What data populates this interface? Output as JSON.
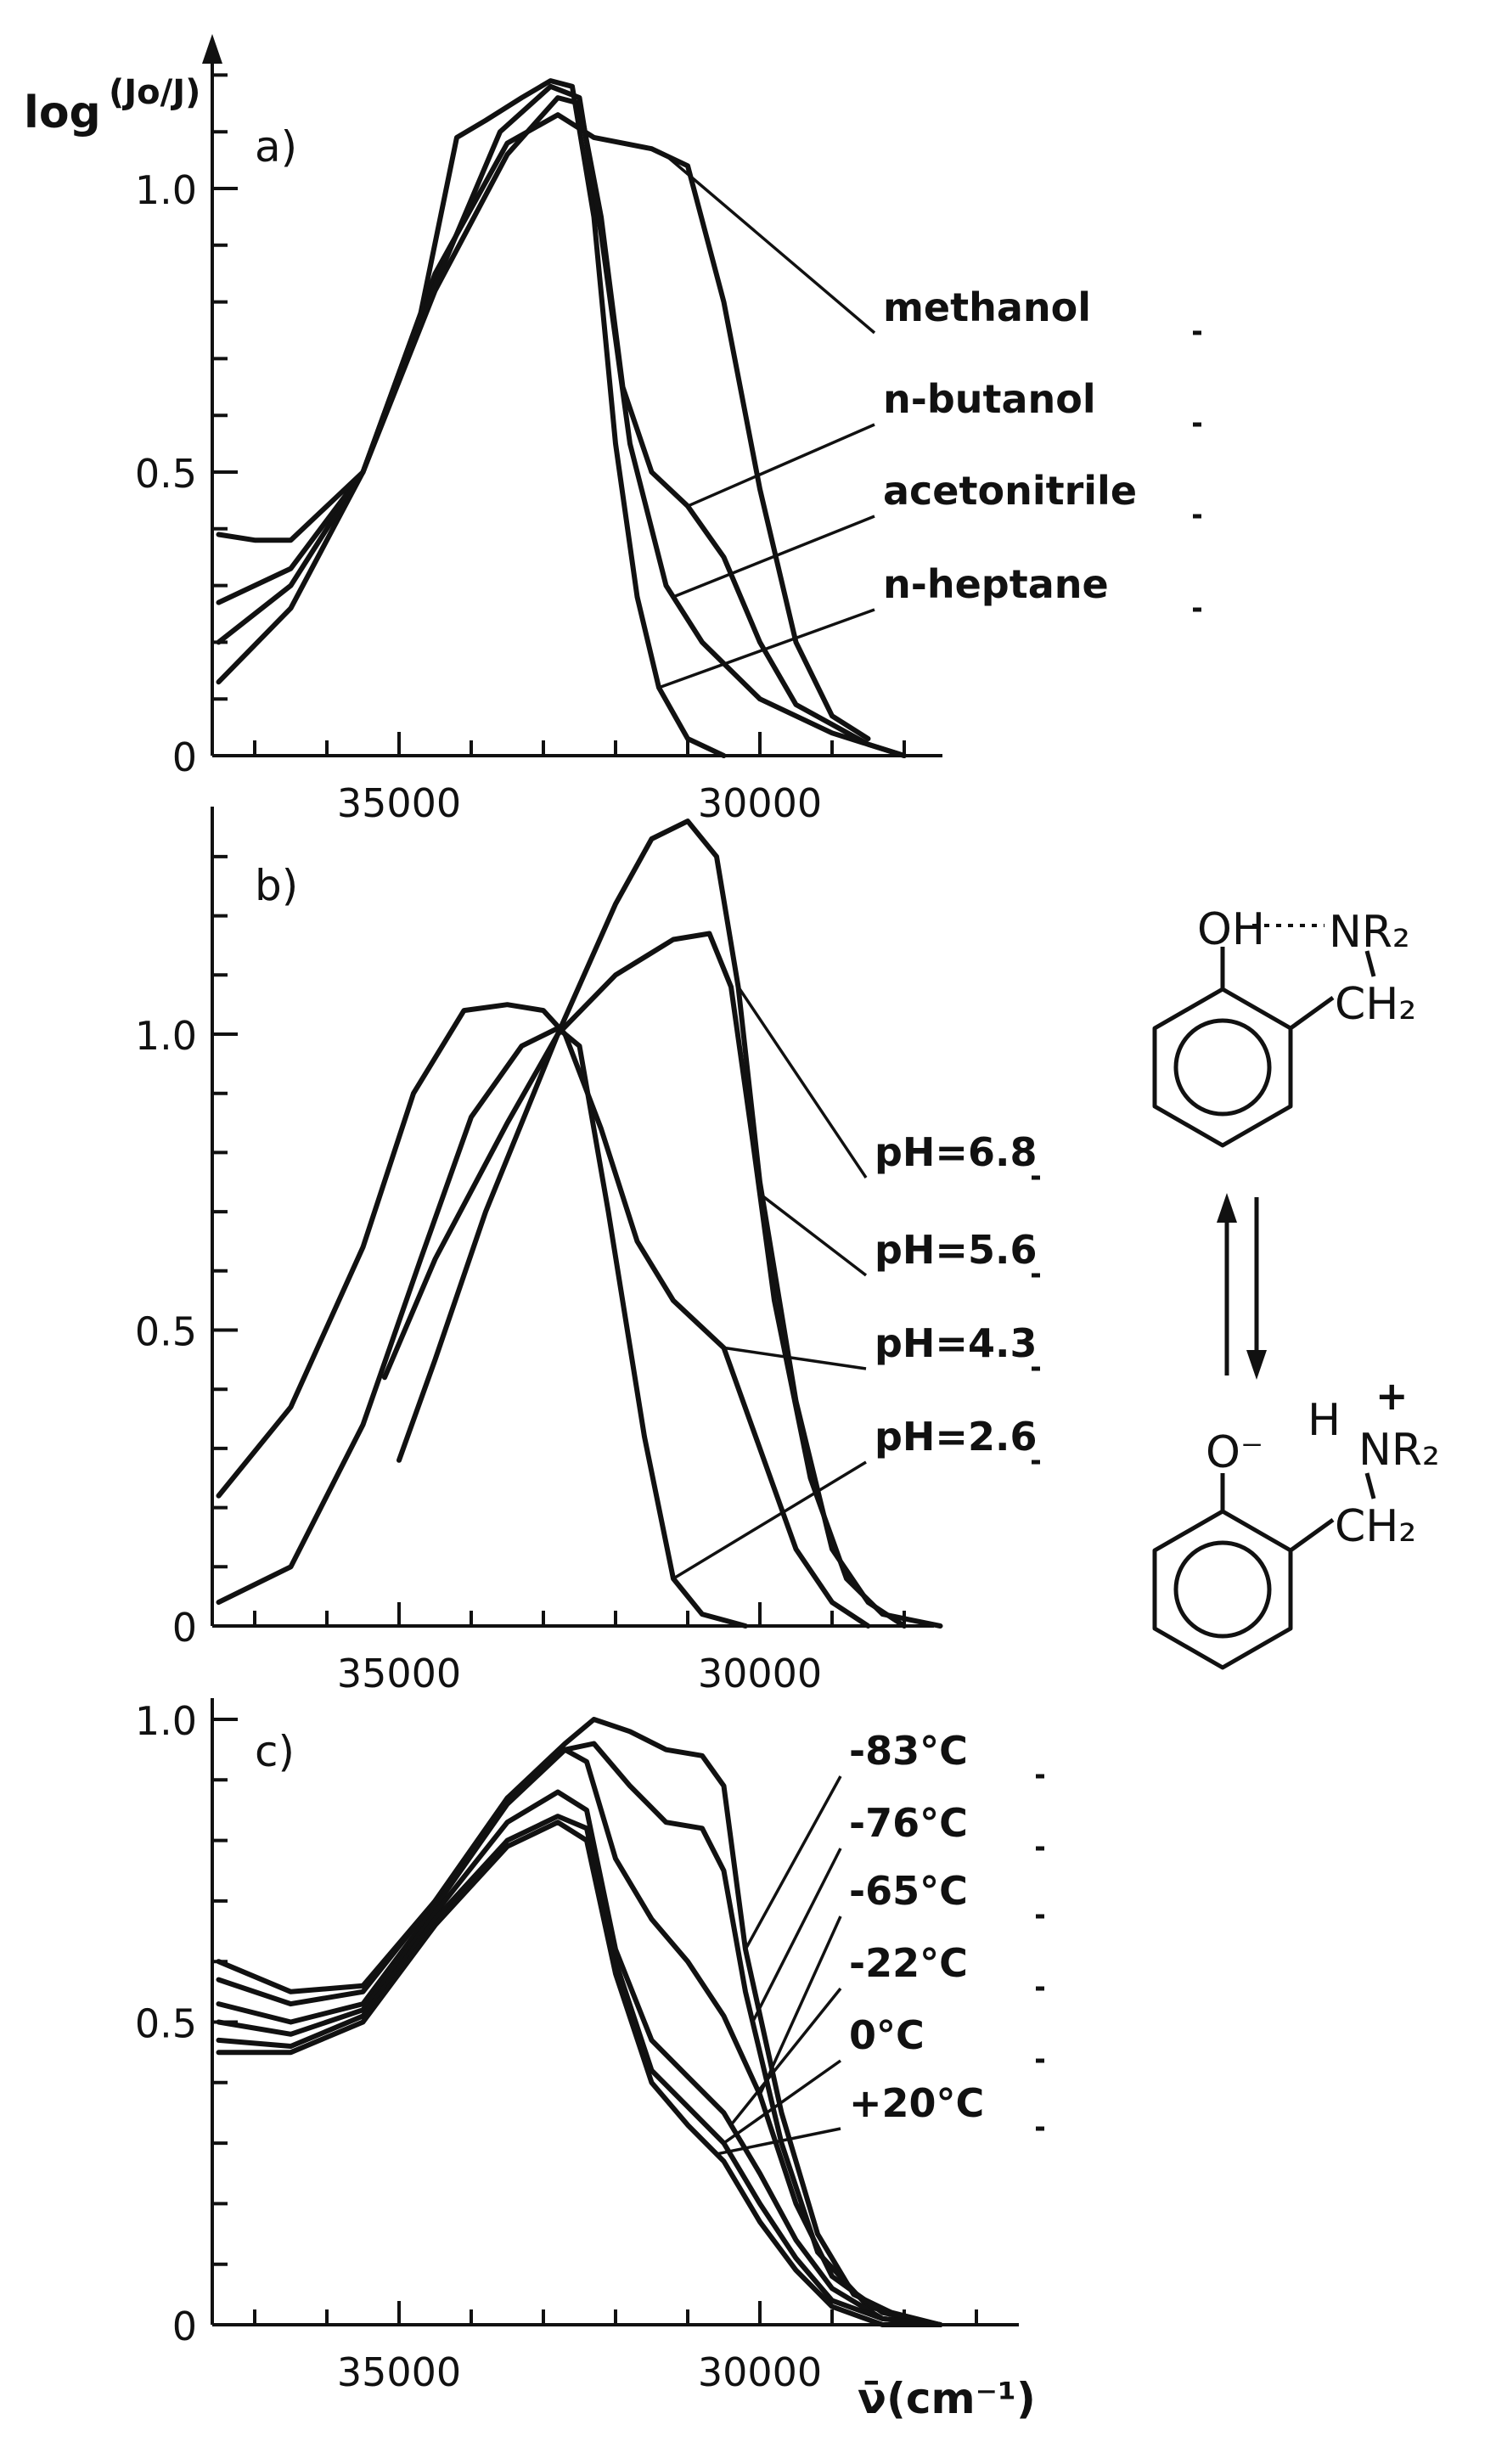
{
  "figure": {
    "ylabel_main": "log",
    "ylabel_frac": "(Jo/J)",
    "xlabel": "ν̄(cm⁻¹)"
  },
  "chart_data": [
    {
      "type": "line",
      "panel_label": "a)",
      "xlabel": "",
      "ylabel": "log(Jo/J)",
      "xlim": [
        37500,
        26500
      ],
      "ylim": [
        0,
        1.3
      ],
      "x_ticks": [
        35000,
        30000
      ],
      "y_ticks": [
        "0",
        "0.5",
        "1.0"
      ],
      "y_tick_values": [
        0,
        0.5,
        1.0
      ],
      "series": [
        {
          "name": "methanol",
          "points": [
            [
              37500,
              0.13
            ],
            [
              36500,
              0.26
            ],
            [
              35500,
              0.5
            ],
            [
              34500,
              0.85
            ],
            [
              33500,
              1.08
            ],
            [
              32800,
              1.13
            ],
            [
              32300,
              1.09
            ],
            [
              31500,
              1.07
            ],
            [
              31000,
              1.04
            ],
            [
              30500,
              0.8
            ],
            [
              30000,
              0.47
            ],
            [
              29500,
              0.2
            ],
            [
              29000,
              0.07
            ],
            [
              28500,
              0.03
            ]
          ]
        },
        {
          "name": "n-butanol",
          "points": [
            [
              37500,
              0.2
            ],
            [
              36500,
              0.3
            ],
            [
              35500,
              0.5
            ],
            [
              34500,
              0.82
            ],
            [
              33500,
              1.06
            ],
            [
              32800,
              1.16
            ],
            [
              32500,
              1.15
            ],
            [
              32200,
              0.95
            ],
            [
              31900,
              0.65
            ],
            [
              31500,
              0.5
            ],
            [
              31000,
              0.44
            ],
            [
              30500,
              0.35
            ],
            [
              30000,
              0.2
            ],
            [
              29500,
              0.09
            ],
            [
              28500,
              0.02
            ],
            [
              28000,
              0.0
            ]
          ]
        },
        {
          "name": "acetonitrile",
          "points": [
            [
              37500,
              0.27
            ],
            [
              36500,
              0.33
            ],
            [
              35500,
              0.5
            ],
            [
              34500,
              0.83
            ],
            [
              33600,
              1.1
            ],
            [
              32900,
              1.18
            ],
            [
              32500,
              1.16
            ],
            [
              32200,
              0.92
            ],
            [
              31800,
              0.55
            ],
            [
              31300,
              0.3
            ],
            [
              30800,
              0.2
            ],
            [
              30000,
              0.1
            ],
            [
              29000,
              0.04
            ],
            [
              28000,
              0.0
            ]
          ]
        },
        {
          "name": "n-heptane",
          "points": [
            [
              37500,
              0.39
            ],
            [
              37000,
              0.38
            ],
            [
              36500,
              0.38
            ],
            [
              35500,
              0.5
            ],
            [
              34700,
              0.78
            ],
            [
              34200,
              1.09
            ],
            [
              33800,
              1.12
            ],
            [
              33300,
              1.16
            ],
            [
              32900,
              1.19
            ],
            [
              32600,
              1.18
            ],
            [
              32300,
              0.95
            ],
            [
              32000,
              0.55
            ],
            [
              31700,
              0.28
            ],
            [
              31400,
              0.12
            ],
            [
              31000,
              0.03
            ],
            [
              30500,
              0.0
            ]
          ]
        }
      ]
    },
    {
      "type": "line",
      "panel_label": "b)",
      "xlabel": "",
      "ylabel": "log(Jo/J)",
      "xlim": [
        37500,
        26500
      ],
      "ylim": [
        0,
        1.4
      ],
      "x_ticks": [
        35000,
        30000
      ],
      "y_ticks": [
        "0",
        "0.5",
        "1.0"
      ],
      "y_tick_values": [
        0,
        0.5,
        1.0
      ],
      "series": [
        {
          "name": "pH=6.8",
          "points": [
            [
              35000,
              0.28
            ],
            [
              34500,
              0.45
            ],
            [
              33800,
              0.7
            ],
            [
              32800,
              1.0
            ],
            [
              32000,
              1.22
            ],
            [
              31500,
              1.33
            ],
            [
              31000,
              1.36
            ],
            [
              30600,
              1.3
            ],
            [
              30300,
              1.08
            ],
            [
              30000,
              0.75
            ],
            [
              29500,
              0.38
            ],
            [
              29000,
              0.13
            ],
            [
              28500,
              0.04
            ],
            [
              28000,
              0.0
            ]
          ]
        },
        {
          "name": "pH=5.6",
          "points": [
            [
              35200,
              0.42
            ],
            [
              34500,
              0.62
            ],
            [
              33500,
              0.85
            ],
            [
              32800,
              1.0
            ],
            [
              32000,
              1.1
            ],
            [
              31200,
              1.16
            ],
            [
              30700,
              1.17
            ],
            [
              30400,
              1.08
            ],
            [
              30100,
              0.82
            ],
            [
              29800,
              0.55
            ],
            [
              29300,
              0.25
            ],
            [
              28800,
              0.08
            ],
            [
              28300,
              0.02
            ],
            [
              27500,
              0.0
            ]
          ]
        },
        {
          "name": "pH=4.3",
          "points": [
            [
              37500,
              0.22
            ],
            [
              36500,
              0.37
            ],
            [
              35500,
              0.64
            ],
            [
              34800,
              0.9
            ],
            [
              34100,
              1.04
            ],
            [
              33500,
              1.05
            ],
            [
              33000,
              1.04
            ],
            [
              32700,
              1.0
            ],
            [
              32200,
              0.84
            ],
            [
              31700,
              0.65
            ],
            [
              31200,
              0.55
            ],
            [
              30500,
              0.47
            ],
            [
              30000,
              0.3
            ],
            [
              29500,
              0.13
            ],
            [
              29000,
              0.04
            ],
            [
              28500,
              0.0
            ]
          ]
        },
        {
          "name": "pH=2.6",
          "points": [
            [
              37500,
              0.04
            ],
            [
              36500,
              0.1
            ],
            [
              35500,
              0.34
            ],
            [
              34700,
              0.62
            ],
            [
              34000,
              0.86
            ],
            [
              33300,
              0.98
            ],
            [
              32800,
              1.01
            ],
            [
              32500,
              0.98
            ],
            [
              32100,
              0.7
            ],
            [
              31600,
              0.32
            ],
            [
              31200,
              0.08
            ],
            [
              30800,
              0.02
            ],
            [
              30200,
              0.0
            ]
          ]
        }
      ]
    },
    {
      "type": "line",
      "panel_label": "c)",
      "xlabel": "ν̄(cm⁻¹)",
      "ylabel": "log(Jo/J)",
      "xlim": [
        37500,
        26500
      ],
      "ylim": [
        0,
        1.05
      ],
      "x_ticks": [
        35000,
        30000
      ],
      "y_ticks": [
        "0",
        "0.5",
        "1.0"
      ],
      "y_tick_values": [
        0,
        0.5,
        1.0
      ],
      "series": [
        {
          "name": "-83°C",
          "points": [
            [
              37500,
              0.6
            ],
            [
              36500,
              0.55
            ],
            [
              35500,
              0.56
            ],
            [
              34500,
              0.7
            ],
            [
              33500,
              0.87
            ],
            [
              32700,
              0.96
            ],
            [
              32300,
              1.0
            ],
            [
              31800,
              0.98
            ],
            [
              31300,
              0.95
            ],
            [
              30800,
              0.94
            ],
            [
              30500,
              0.89
            ],
            [
              30200,
              0.62
            ],
            [
              29700,
              0.35
            ],
            [
              29200,
              0.15
            ],
            [
              28700,
              0.05
            ],
            [
              28000,
              0.01
            ],
            [
              27500,
              0.0
            ]
          ]
        },
        {
          "name": "-76°C",
          "points": [
            [
              37500,
              0.57
            ],
            [
              36500,
              0.53
            ],
            [
              35500,
              0.55
            ],
            [
              34500,
              0.7
            ],
            [
              33500,
              0.87
            ],
            [
              32700,
              0.95
            ],
            [
              32300,
              0.96
            ],
            [
              31800,
              0.89
            ],
            [
              31300,
              0.83
            ],
            [
              30800,
              0.82
            ],
            [
              30500,
              0.75
            ],
            [
              30200,
              0.55
            ],
            [
              29700,
              0.3
            ],
            [
              29200,
              0.12
            ],
            [
              28500,
              0.03
            ],
            [
              27500,
              0.0
            ]
          ]
        },
        {
          "name": "-65°C",
          "points": [
            [
              37500,
              0.53
            ],
            [
              36500,
              0.5
            ],
            [
              35500,
              0.53
            ],
            [
              34500,
              0.69
            ],
            [
              33500,
              0.86
            ],
            [
              32700,
              0.95
            ],
            [
              32400,
              0.93
            ],
            [
              32000,
              0.77
            ],
            [
              31500,
              0.67
            ],
            [
              31000,
              0.6
            ],
            [
              30500,
              0.51
            ],
            [
              30000,
              0.38
            ],
            [
              29500,
              0.2
            ],
            [
              29000,
              0.08
            ],
            [
              28300,
              0.02
            ],
            [
              27500,
              0.0
            ]
          ]
        },
        {
          "name": "-22°C",
          "points": [
            [
              37500,
              0.5
            ],
            [
              36500,
              0.48
            ],
            [
              35500,
              0.52
            ],
            [
              34500,
              0.68
            ],
            [
              33500,
              0.83
            ],
            [
              32800,
              0.88
            ],
            [
              32400,
              0.85
            ],
            [
              32000,
              0.62
            ],
            [
              31500,
              0.47
            ],
            [
              31000,
              0.41
            ],
            [
              30500,
              0.35
            ],
            [
              30000,
              0.25
            ],
            [
              29500,
              0.14
            ],
            [
              29000,
              0.06
            ],
            [
              28300,
              0.01
            ],
            [
              27500,
              0.0
            ]
          ]
        },
        {
          "name": "0°C",
          "points": [
            [
              37500,
              0.47
            ],
            [
              36500,
              0.46
            ],
            [
              35500,
              0.51
            ],
            [
              34500,
              0.67
            ],
            [
              33500,
              0.8
            ],
            [
              32800,
              0.84
            ],
            [
              32400,
              0.82
            ],
            [
              32000,
              0.6
            ],
            [
              31500,
              0.42
            ],
            [
              31000,
              0.36
            ],
            [
              30500,
              0.3
            ],
            [
              30000,
              0.2
            ],
            [
              29500,
              0.11
            ],
            [
              29000,
              0.04
            ],
            [
              28300,
              0.01
            ],
            [
              27500,
              0.0
            ]
          ]
        },
        {
          "name": "+20°C",
          "points": [
            [
              37500,
              0.45
            ],
            [
              36500,
              0.45
            ],
            [
              35500,
              0.5
            ],
            [
              34500,
              0.66
            ],
            [
              33500,
              0.79
            ],
            [
              32800,
              0.83
            ],
            [
              32400,
              0.8
            ],
            [
              32000,
              0.58
            ],
            [
              31500,
              0.4
            ],
            [
              31000,
              0.33
            ],
            [
              30500,
              0.27
            ],
            [
              30000,
              0.17
            ],
            [
              29500,
              0.09
            ],
            [
              29000,
              0.03
            ],
            [
              28300,
              0.0
            ],
            [
              27500,
              0.0
            ]
          ]
        }
      ]
    }
  ],
  "structures": {
    "top": {
      "hydroxyl": "OH",
      "amine": "NR₂",
      "methylene": "CH₂"
    },
    "bottom": {
      "phenolate": "O⁻",
      "ammonium_h": "H",
      "plus": "+",
      "amine": "NR₂",
      "methylene": "CH₂"
    }
  }
}
